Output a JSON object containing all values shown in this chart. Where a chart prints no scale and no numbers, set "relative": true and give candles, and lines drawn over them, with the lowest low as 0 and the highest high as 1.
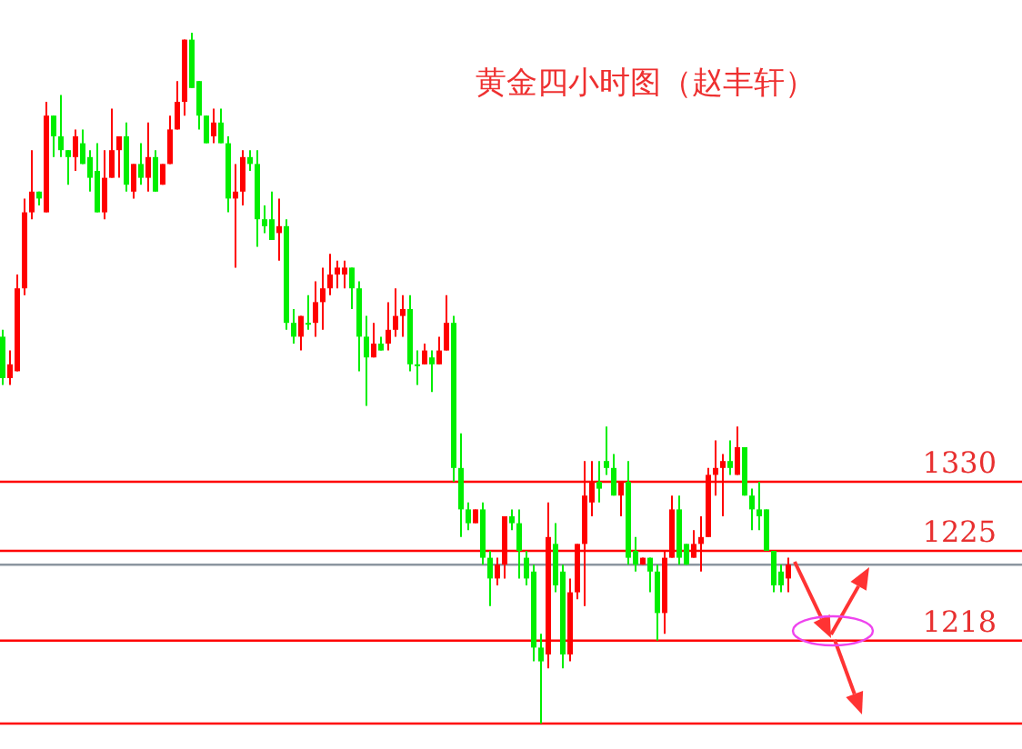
{
  "chart_data": {
    "type": "candlestick",
    "title": "黄金四小时图（赵丰轩）",
    "relative": true,
    "annotations": [
      "1330",
      "1225",
      "1218"
    ],
    "colors": [
      "#00ee00",
      "#ff0000",
      "#ff0000",
      "#ff0000",
      "#ff0000",
      "#00ee00",
      "#ff0000",
      "#00ee00",
      "#00ee00",
      "#00ee00",
      "#ff0000",
      "#00ee00",
      "#00ee00",
      "#00ee00",
      "#ff0000",
      "#ff0000",
      "#ff0000",
      "#00ee00",
      "#ff0000",
      "#00ee00",
      "#ff0000",
      "#00ee00",
      "#ff0000",
      "#ff0000",
      "#ff0000",
      "#ff0000",
      "#00ee00",
      "#00ee00",
      "#00ee00",
      "#ff0000",
      "#00ee00",
      "#00ee00",
      "#ff0000",
      "#ff0000",
      "#00ee00",
      "#00ee00",
      "#00ee00",
      "#00ee00",
      "#ff0000",
      "#00ee00",
      "#00ee00",
      "#ff0000",
      "#00ee00",
      "#ff0000",
      "#ff0000",
      "#ff0000",
      "#ff0000",
      "#ff0000",
      "#00ee00",
      "#00ee00",
      "#00ee00",
      "#ff0000",
      "#00ee00",
      "#ff0000",
      "#ff0000",
      "#ff0000",
      "#00ee00",
      "#00ee00",
      "#ff0000",
      "#00ee00",
      "#ff0000",
      "#ff0000",
      "#00ee00",
      "#00ee00",
      "#00ee00",
      "#ff0000",
      "#00ee00",
      "#00ee00",
      "#ff0000",
      "#ff0000",
      "#00ee00",
      "#00ee00",
      "#00ee00",
      "#00ee00",
      "#00ee00",
      "#ff0000",
      "#00ee00",
      "#00ee00",
      "#ff0000",
      "#ff0000",
      "#ff0000",
      "#ff0000",
      "#00ee00",
      "#00ee00",
      "#00ee00",
      "#ff0000",
      "#00ee00",
      "#00ee00",
      "#ff0000",
      "#00ee00",
      "#00ee00",
      "#ff0000",
      "#ff0000",
      "#00ee00",
      "#00ee00",
      "#ff0000",
      "#ff0000",
      "#ff0000",
      "#ff0000",
      "#ff0000",
      "#00ee00",
      "#ff0000",
      "#00ee00",
      "#00ee00",
      "#00ee00",
      "#00ee00",
      "#00ee00",
      "#00ee00",
      "#ff0000"
    ],
    "categories": [
      null,
      null,
      null,
      null,
      null,
      null,
      null,
      null,
      null,
      null,
      null,
      null,
      null,
      null,
      null,
      null,
      null,
      null,
      null,
      null,
      null,
      null,
      null,
      null,
      null,
      null,
      null,
      null,
      null,
      null,
      null,
      null,
      null,
      null,
      null,
      null,
      null,
      null,
      null,
      null,
      null,
      null,
      null,
      null,
      null,
      null,
      null,
      null,
      null,
      null,
      null,
      null,
      null,
      null,
      null,
      null,
      null,
      null,
      null,
      null,
      null,
      null,
      null,
      null,
      null,
      null,
      null,
      null,
      null,
      null,
      null,
      null,
      null,
      null,
      null,
      null,
      null,
      null,
      null,
      null,
      null,
      null,
      null,
      null,
      null,
      null,
      null,
      null,
      null,
      null,
      null,
      null,
      null,
      null,
      null,
      null,
      null,
      null,
      null,
      null,
      null,
      null,
      null,
      null,
      null,
      null,
      null,
      null,
      null
    ],
    "ohlc": [
      [
        0.56,
        0.57,
        0.49,
        0.5
      ],
      [
        0.5,
        0.54,
        0.49,
        0.52
      ],
      [
        0.51,
        0.65,
        0.51,
        0.63
      ],
      [
        0.63,
        0.76,
        0.62,
        0.74
      ],
      [
        0.74,
        0.83,
        0.73,
        0.77
      ],
      [
        0.77,
        0.77,
        0.75,
        0.76
      ],
      [
        0.74,
        0.9,
        0.74,
        0.88
      ],
      [
        0.88,
        0.88,
        0.82,
        0.85
      ],
      [
        0.85,
        0.91,
        0.82,
        0.83
      ],
      [
        0.83,
        0.83,
        0.78,
        0.82
      ],
      [
        0.82,
        0.86,
        0.8,
        0.85
      ],
      [
        0.84,
        0.86,
        0.81,
        0.81
      ],
      [
        0.82,
        0.83,
        0.77,
        0.79
      ],
      [
        0.8,
        0.84,
        0.74,
        0.74
      ],
      [
        0.74,
        0.83,
        0.73,
        0.79
      ],
      [
        0.79,
        0.89,
        0.79,
        0.83
      ],
      [
        0.83,
        0.85,
        0.79,
        0.85
      ],
      [
        0.85,
        0.87,
        0.77,
        0.78
      ],
      [
        0.77,
        0.81,
        0.76,
        0.81
      ],
      [
        0.81,
        0.84,
        0.78,
        0.79
      ],
      [
        0.79,
        0.87,
        0.77,
        0.82
      ],
      [
        0.82,
        0.83,
        0.77,
        0.77
      ],
      [
        0.78,
        0.81,
        0.78,
        0.81
      ],
      [
        0.81,
        0.88,
        0.81,
        0.86
      ],
      [
        0.86,
        0.93,
        0.86,
        0.9
      ],
      [
        0.9,
        0.99,
        0.88,
        0.99
      ],
      [
        0.99,
        1,
        0.92,
        0.92
      ],
      [
        0.93,
        0.93,
        0.86,
        0.88
      ],
      [
        0.88,
        0.88,
        0.84,
        0.84
      ],
      [
        0.85,
        0.89,
        0.84,
        0.87
      ],
      [
        0.87,
        0.89,
        0.84,
        0.84
      ],
      [
        0.84,
        0.85,
        0.74,
        0.76
      ],
      [
        0.76,
        0.81,
        0.66,
        0.77
      ],
      [
        0.77,
        0.83,
        0.75,
        0.82
      ],
      [
        0.82,
        0.83,
        0.8,
        0.81
      ],
      [
        0.81,
        0.83,
        0.69,
        0.73
      ],
      [
        0.73,
        0.75,
        0.71,
        0.72
      ],
      [
        0.73,
        0.77,
        0.7,
        0.7
      ],
      [
        0.71,
        0.76,
        0.67,
        0.72
      ],
      [
        0.72,
        0.73,
        0.57,
        0.58
      ],
      [
        0.58,
        0.6,
        0.55,
        0.56
      ],
      [
        0.56,
        0.59,
        0.54,
        0.59
      ],
      [
        0.58,
        0.62,
        0.57,
        0.58
      ],
      [
        0.58,
        0.64,
        0.56,
        0.61
      ],
      [
        0.61,
        0.66,
        0.57,
        0.63
      ],
      [
        0.63,
        0.68,
        0.62,
        0.65
      ],
      [
        0.65,
        0.67,
        0.63,
        0.66
      ],
      [
        0.65,
        0.67,
        0.63,
        0.66
      ],
      [
        0.66,
        0.66,
        0.6,
        0.63
      ],
      [
        0.63,
        0.64,
        0.51,
        0.56
      ],
      [
        0.56,
        0.59,
        0.46,
        0.53
      ],
      [
        0.53,
        0.58,
        0.53,
        0.55
      ],
      [
        0.55,
        0.56,
        0.54,
        0.54
      ],
      [
        0.55,
        0.61,
        0.54,
        0.57
      ],
      [
        0.57,
        0.63,
        0.56,
        0.59
      ],
      [
        0.59,
        0.62,
        0.56,
        0.6
      ],
      [
        0.6,
        0.62,
        0.51,
        0.52
      ],
      [
        0.52,
        0.54,
        0.49,
        0.52
      ],
      [
        0.52,
        0.55,
        0.52,
        0.54
      ],
      [
        0.53,
        0.54,
        0.48,
        0.52
      ],
      [
        0.52,
        0.56,
        0.52,
        0.54
      ],
      [
        0.54,
        0.62,
        0.54,
        0.58
      ],
      [
        0.58,
        0.59,
        0.35,
        0.37
      ],
      [
        0.37,
        0.42,
        0.27,
        0.31
      ],
      [
        0.31,
        0.32,
        0.28,
        0.29
      ],
      [
        0.29,
        0.31,
        0.29,
        0.31
      ],
      [
        0.31,
        0.32,
        0.23,
        0.24
      ],
      [
        0.24,
        0.25,
        0.17,
        0.21
      ],
      [
        0.21,
        0.24,
        0.2,
        0.23
      ],
      [
        0.23,
        0.3,
        0.21,
        0.3
      ],
      [
        0.3,
        0.31,
        0.28,
        0.29
      ],
      [
        0.29,
        0.31,
        0.21,
        0.25
      ],
      [
        0.24,
        0.25,
        0.2,
        0.21
      ],
      [
        0.22,
        0.23,
        0.09,
        0.11
      ],
      [
        0.11,
        0.13,
        0,
        0.09
      ],
      [
        0.1,
        0.32,
        0.08,
        0.27
      ],
      [
        0.26,
        0.29,
        0.19,
        0.2
      ],
      [
        0.22,
        0.23,
        0.08,
        0.1
      ],
      [
        0.1,
        0.21,
        0.09,
        0.19
      ],
      [
        0.19,
        0.26,
        0.18,
        0.26
      ],
      [
        0.26,
        0.38,
        0.17,
        0.33
      ],
      [
        0.32,
        0.38,
        0.3,
        0.35
      ],
      [
        0.35,
        0.38,
        0.32,
        0.34
      ],
      [
        0.38,
        0.43,
        0.36,
        0.37
      ],
      [
        0.37,
        0.39,
        0.33,
        0.33
      ],
      [
        0.33,
        0.35,
        0.3,
        0.35
      ],
      [
        0.35,
        0.38,
        0.23,
        0.24
      ],
      [
        0.25,
        0.27,
        0.22,
        0.23
      ],
      [
        0.23,
        0.24,
        0.23,
        0.24
      ],
      [
        0.24,
        0.24,
        0.19,
        0.22
      ],
      [
        0.22,
        0.23,
        0.12,
        0.16
      ],
      [
        0.16,
        0.25,
        0.13,
        0.24
      ],
      [
        0.24,
        0.33,
        0.24,
        0.31
      ],
      [
        0.31,
        0.33,
        0.23,
        0.24
      ],
      [
        0.26,
        0.26,
        0.23,
        0.23
      ],
      [
        0.24,
        0.28,
        0.24,
        0.26
      ],
      [
        0.26,
        0.3,
        0.22,
        0.27
      ],
      [
        0.27,
        0.37,
        0.27,
        0.36
      ],
      [
        0.36,
        0.41,
        0.33,
        0.37
      ],
      [
        0.37,
        0.39,
        0.3,
        0.38
      ],
      [
        0.38,
        0.41,
        0.36,
        0.37
      ],
      [
        0.36,
        0.43,
        0.36,
        0.4
      ],
      [
        0.4,
        0.4,
        0.33,
        0.33
      ],
      [
        0.33,
        0.34,
        0.28,
        0.31
      ],
      [
        0.31,
        0.35,
        0.28,
        0.3
      ],
      [
        0.31,
        0.31,
        0.25,
        0.25
      ],
      [
        0.25,
        0.25,
        0.19,
        0.2
      ],
      [
        0.22,
        0.23,
        0.19,
        0.2
      ],
      [
        0.21,
        0.24,
        0.19,
        0.23
      ]
    ],
    "ref_lines": [
      {
        "axis": "y",
        "value": 0.35,
        "label": null,
        "color": "#ff0000"
      },
      {
        "axis": "y",
        "value": 0.25,
        "label": null,
        "color": "#ff0000"
      },
      {
        "axis": "y",
        "value": 0.12,
        "label": null,
        "color": "#ff0000"
      },
      {
        "axis": "y",
        "value": 0,
        "label": null,
        "color": "#ff0000"
      },
      {
        "axis": "y",
        "value": 0.23,
        "label": null,
        "color": "#8c96a0"
      }
    ]
  }
}
